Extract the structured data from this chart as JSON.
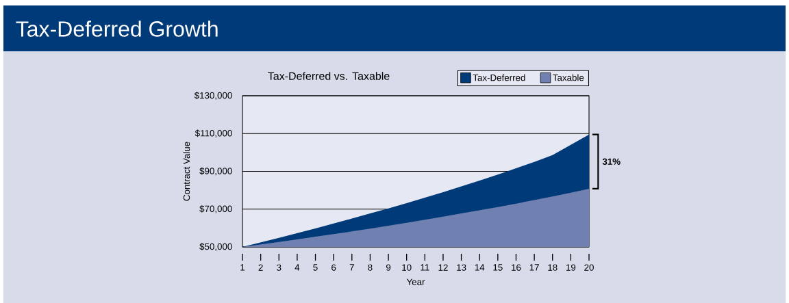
{
  "chart_data": {
    "type": "area",
    "title": "Tax-Deferred Growth",
    "subtitle": "Tax-Deferred vs. Taxable",
    "xlabel": "Year",
    "ylabel": "Contract Value",
    "x": [
      1,
      2,
      3,
      4,
      5,
      6,
      7,
      8,
      9,
      10,
      11,
      12,
      13,
      14,
      15,
      16,
      17,
      18,
      19,
      20
    ],
    "series": [
      {
        "name": "Tax-Deferred",
        "color": "#003a78",
        "values": [
          50000,
          52400,
          54800,
          57300,
          59800,
          62400,
          65000,
          67700,
          70400,
          73200,
          76100,
          79000,
          82000,
          85100,
          88300,
          91600,
          95000,
          98600,
          104000,
          109500
        ]
      },
      {
        "name": "Taxable",
        "color": "#7080b0",
        "values": [
          50000,
          51300,
          52600,
          54000,
          55400,
          56800,
          58200,
          59700,
          61200,
          62800,
          64400,
          66000,
          67700,
          69400,
          71100,
          72900,
          74800,
          76700,
          78700,
          80800
        ]
      }
    ],
    "xlim": [
      1,
      20
    ],
    "ylim": [
      50000,
      130000
    ],
    "xticks": [
      1,
      2,
      3,
      4,
      5,
      6,
      7,
      8,
      9,
      10,
      11,
      12,
      13,
      14,
      15,
      16,
      17,
      18,
      19,
      20
    ],
    "yticks": [
      {
        "value": 50000,
        "label": "$50,000"
      },
      {
        "value": 70000,
        "label": "$70,000"
      },
      {
        "value": 90000,
        "label": "$90,000"
      },
      {
        "value": 110000,
        "label": "$110,000"
      },
      {
        "value": 130000,
        "label": "$130,000"
      }
    ],
    "grid": "y",
    "legend": "top right",
    "annotations": [
      "31%"
    ]
  }
}
